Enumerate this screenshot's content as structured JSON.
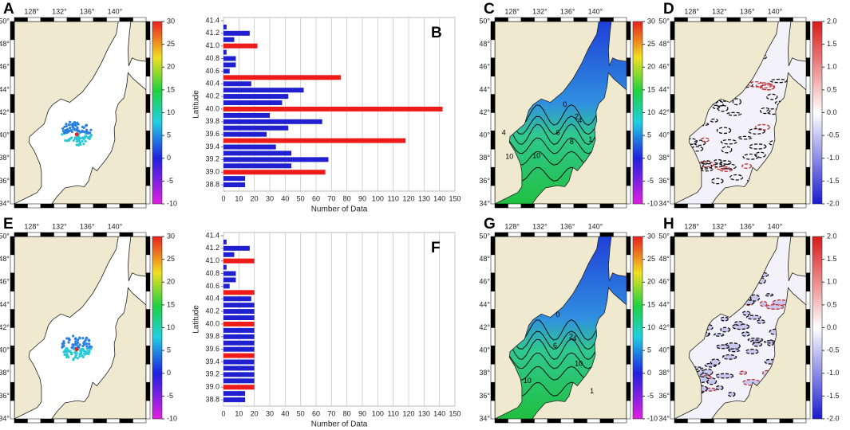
{
  "map_axes": {
    "lonlim": [
      125.5,
      144.5
    ],
    "latlim": [
      34,
      50
    ],
    "lon_ticks": [
      {
        "value": 128,
        "label": "128°"
      },
      {
        "value": 132,
        "label": "132°"
      },
      {
        "value": 136,
        "label": "136°"
      },
      {
        "value": 140,
        "label": "140°"
      }
    ],
    "lat_ticks": [
      {
        "value": 50,
        "label": "50°"
      },
      {
        "value": 48,
        "label": "48°"
      },
      {
        "value": 46,
        "label": "46°"
      },
      {
        "value": 44,
        "label": "44°"
      },
      {
        "value": 42,
        "label": "42°"
      },
      {
        "value": 40,
        "label": "40°"
      },
      {
        "value": 38,
        "label": "38°"
      },
      {
        "value": 36,
        "label": "36°"
      },
      {
        "value": 34,
        "label": "34°"
      }
    ]
  },
  "colorbars": {
    "temperature": {
      "lim": [
        -10,
        30
      ],
      "ticks": [
        30,
        25,
        20,
        15,
        10,
        5,
        0,
        -5,
        -10
      ]
    },
    "anomaly": {
      "lim": [
        -2,
        2
      ],
      "ticks": [
        {
          "value": 2,
          "label": "2.0"
        },
        1.5,
        {
          "value": 1,
          "label": "1.0"
        },
        0.5,
        {
          "value": 0,
          "label": "0.0"
        },
        -0.5,
        {
          "value": -1,
          "label": "-1.0"
        },
        -1.5,
        {
          "value": -2,
          "label": "-2.0"
        }
      ]
    }
  },
  "maps": [
    {
      "label": "A",
      "kind": "points",
      "colorbar": "temperature"
    },
    {
      "label": "C",
      "kind": "field",
      "colorbar": "temperature",
      "contour_labels": [
        "0",
        "2",
        "4",
        "6",
        "8",
        "1",
        "4",
        "10",
        "10"
      ]
    },
    {
      "label": "D",
      "kind": "anomaly",
      "colorbar": "anomaly"
    },
    {
      "label": "E",
      "kind": "points",
      "colorbar": "temperature"
    },
    {
      "label": "G",
      "kind": "field",
      "colorbar": "temperature",
      "contour_labels": [
        "0",
        "6",
        "2",
        "4",
        "10",
        "10",
        "1"
      ]
    },
    {
      "label": "H",
      "kind": "anomaly",
      "colorbar": "anomaly"
    }
  ],
  "chart_data": [
    {
      "type": "bar",
      "annotation": "B",
      "x_label": "Number of Data",
      "y_label": "Latitude",
      "y": [
        41.3,
        41.2,
        41.1,
        41.0,
        40.9,
        40.8,
        40.7,
        40.6,
        40.5,
        40.4,
        40.3,
        40.2,
        40.1,
        40.0,
        39.9,
        39.8,
        39.7,
        39.6,
        39.5,
        39.4,
        39.3,
        39.2,
        39.1,
        39.0,
        38.9,
        38.8
      ],
      "values": [
        2,
        17,
        7,
        22,
        2,
        8,
        8,
        4,
        76,
        18,
        52,
        42,
        38,
        142,
        30,
        64,
        42,
        28,
        118,
        34,
        44,
        68,
        44,
        66,
        14,
        14
      ],
      "colors": [
        "#2020d0",
        "#2020d0",
        "#2020d0",
        "#ee1b1b",
        "#2020d0",
        "#2020d0",
        "#2020d0",
        "#2020d0",
        "#ee1b1b",
        "#2020d0",
        "#2020d0",
        "#2020d0",
        "#2020d0",
        "#ee1b1b",
        "#2020d0",
        "#2020d0",
        "#2020d0",
        "#2020d0",
        "#ee1b1b",
        "#2020d0",
        "#2020d0",
        "#2020d0",
        "#2020d0",
        "#ee1b1b",
        "#2020d0",
        "#2020d0"
      ],
      "xlim": [
        0,
        150
      ],
      "xticks": [
        0,
        10,
        20,
        30,
        40,
        50,
        60,
        70,
        80,
        90,
        100,
        110,
        120,
        130,
        140,
        150
      ],
      "ylim": [
        38.7,
        41.45
      ],
      "yticks": [
        41.4,
        41.2,
        {
          "value": 41,
          "label": "41.0"
        },
        40.8,
        40.6,
        40.4,
        40.2,
        {
          "value": 40,
          "label": "40.0"
        },
        39.8,
        39.6,
        39.4,
        39.2,
        {
          "value": 39,
          "label": "39.0"
        },
        38.8
      ],
      "grid": true
    },
    {
      "type": "bar",
      "annotation": "F",
      "x_label": "Number of Data",
      "y_label": "Latitude",
      "y": [
        41.3,
        41.2,
        41.1,
        41.0,
        40.9,
        40.8,
        40.7,
        40.6,
        40.5,
        40.4,
        40.3,
        40.2,
        40.1,
        40.0,
        39.9,
        39.8,
        39.7,
        39.6,
        39.5,
        39.4,
        39.3,
        39.2,
        39.1,
        39.0,
        38.9,
        38.8
      ],
      "values": [
        2,
        17,
        7,
        20,
        2,
        8,
        8,
        4,
        20,
        18,
        20,
        20,
        20,
        20,
        20,
        20,
        20,
        20,
        20,
        20,
        20,
        20,
        20,
        20,
        14,
        14
      ],
      "colors": [
        "#2020d0",
        "#2020d0",
        "#2020d0",
        "#ee1b1b",
        "#2020d0",
        "#2020d0",
        "#2020d0",
        "#2020d0",
        "#ee1b1b",
        "#2020d0",
        "#2020d0",
        "#2020d0",
        "#2020d0",
        "#ee1b1b",
        "#2020d0",
        "#2020d0",
        "#2020d0",
        "#2020d0",
        "#ee1b1b",
        "#2020d0",
        "#2020d0",
        "#2020d0",
        "#2020d0",
        "#ee1b1b",
        "#2020d0",
        "#2020d0"
      ],
      "xlim": [
        0,
        150
      ],
      "xticks": [
        0,
        10,
        20,
        30,
        40,
        50,
        60,
        70,
        80,
        90,
        100,
        110,
        120,
        130,
        140,
        150
      ],
      "ylim": [
        38.7,
        41.45
      ],
      "yticks": [
        41.4,
        41.2,
        {
          "value": 41,
          "label": "41.0"
        },
        40.8,
        40.6,
        40.4,
        40.2,
        {
          "value": 40,
          "label": "40.0"
        },
        39.8,
        39.6,
        39.4,
        39.2,
        {
          "value": 39,
          "label": "39.0"
        },
        38.8
      ],
      "grid": true
    }
  ]
}
